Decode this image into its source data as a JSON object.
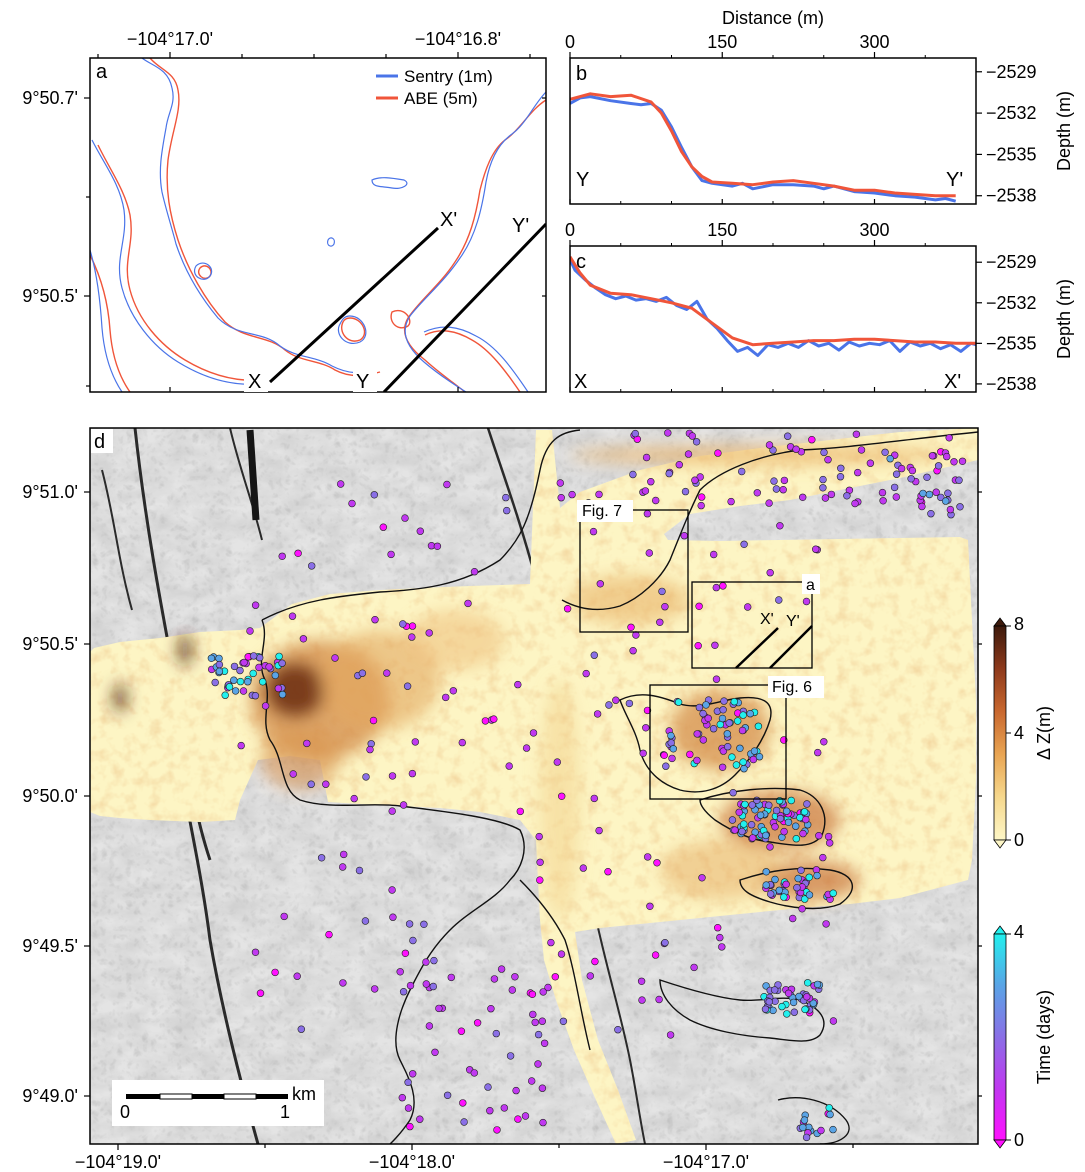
{
  "panel_a": {
    "letter": "a",
    "top_ticks": [
      "−104°17.0'",
      "−104°16.8'"
    ],
    "left_ticks": [
      "9°50.7'",
      "9°50.5'"
    ],
    "legend": [
      {
        "label": "Sentry (1m)",
        "color": "#4a74e8"
      },
      {
        "label": "ABE (5m)",
        "color": "#f0553a"
      }
    ],
    "profile_labels": {
      "x": "X",
      "x_prime": "X'",
      "y": "Y",
      "y_prime": "Y'"
    }
  },
  "chart_data": [
    {
      "type": "line",
      "panel": "b",
      "profile": [
        "Y",
        "Y'"
      ],
      "xlabel": "Distance (m)",
      "ylabel": "Depth (m)",
      "xlim": [
        0,
        400
      ],
      "ylim": [
        -2538.6,
        -2528
      ],
      "x_ticks": [
        "0",
        "150",
        "300"
      ],
      "y_ticks": [
        "−2529",
        "−2532",
        "−2535",
        "−2538"
      ],
      "series": [
        {
          "name": "Sentry (1m)",
          "color": "#4a74e8",
          "x": [
            0,
            10,
            20,
            40,
            60,
            70,
            80,
            90,
            100,
            110,
            120,
            130,
            140,
            160,
            170,
            180,
            200,
            220,
            240,
            250,
            260,
            280,
            300,
            320,
            340,
            360,
            370,
            380
          ],
          "y": [
            -2531.3,
            -2530.9,
            -2530.8,
            -2531.1,
            -2531.3,
            -2531.4,
            -2531.3,
            -2531.8,
            -2533.0,
            -2534.5,
            -2535.9,
            -2536.9,
            -2537.1,
            -2537.3,
            -2537.1,
            -2537.5,
            -2537.2,
            -2537.2,
            -2537.3,
            -2537.5,
            -2537.3,
            -2537.7,
            -2537.8,
            -2538.0,
            -2538.1,
            -2538.3,
            -2538.2,
            -2538.4
          ]
        },
        {
          "name": "ABE (5m)",
          "color": "#f0553a",
          "x": [
            0,
            20,
            40,
            60,
            80,
            90,
            100,
            110,
            120,
            130,
            140,
            160,
            180,
            200,
            220,
            240,
            260,
            280,
            300,
            320,
            340,
            360,
            380
          ],
          "y": [
            -2531.0,
            -2530.6,
            -2530.8,
            -2530.7,
            -2531.2,
            -2532.0,
            -2533.3,
            -2534.8,
            -2535.9,
            -2536.6,
            -2537.0,
            -2537.1,
            -2537.2,
            -2537.0,
            -2536.9,
            -2537.1,
            -2537.3,
            -2537.6,
            -2537.6,
            -2537.8,
            -2537.9,
            -2538.0,
            -2538.0
          ]
        }
      ],
      "annotations": [
        "Y",
        "Y'"
      ]
    },
    {
      "type": "line",
      "panel": "c",
      "profile": [
        "X",
        "X'"
      ],
      "xlabel": "",
      "ylabel": "Depth (m)",
      "xlim": [
        0,
        400
      ],
      "ylim": [
        -2538.6,
        -2527.8
      ],
      "x_ticks": [
        "0",
        "150",
        "300"
      ],
      "y_ticks": [
        "−2529",
        "−2532",
        "−2535",
        "−2538"
      ],
      "series": [
        {
          "name": "Sentry (1m)",
          "color": "#4a74e8",
          "x": [
            0,
            5,
            15,
            25,
            35,
            45,
            55,
            65,
            75,
            85,
            95,
            105,
            115,
            125,
            135,
            145,
            155,
            165,
            175,
            185,
            195,
            205,
            215,
            225,
            235,
            245,
            255,
            265,
            275,
            285,
            295,
            305,
            315,
            325,
            335,
            345,
            355,
            365,
            375,
            385,
            395,
            400
          ],
          "y": [
            -2528.8,
            -2529.6,
            -2530.3,
            -2530.9,
            -2531.4,
            -2531.7,
            -2531.5,
            -2531.8,
            -2531.7,
            -2531.9,
            -2531.6,
            -2532.2,
            -2532.5,
            -2531.9,
            -2533.2,
            -2533.9,
            -2534.8,
            -2535.6,
            -2535.3,
            -2535.9,
            -2535.1,
            -2535.3,
            -2535.0,
            -2535.3,
            -2534.8,
            -2535.2,
            -2535.0,
            -2535.5,
            -2534.9,
            -2535.2,
            -2535.0,
            -2535.1,
            -2534.8,
            -2535.6,
            -2534.9,
            -2535.2,
            -2535.0,
            -2535.4,
            -2535.1,
            -2535.6,
            -2535.0,
            -2535.1
          ]
        },
        {
          "name": "ABE (5m)",
          "color": "#f0553a",
          "x": [
            0,
            10,
            20,
            40,
            60,
            80,
            100,
            120,
            140,
            160,
            180,
            200,
            220,
            240,
            260,
            280,
            300,
            320,
            340,
            360,
            380,
            400
          ],
          "y": [
            -2528.6,
            -2529.8,
            -2530.7,
            -2531.3,
            -2531.4,
            -2531.7,
            -2532.0,
            -2532.4,
            -2533.5,
            -2534.6,
            -2535.1,
            -2535.0,
            -2534.9,
            -2534.8,
            -2534.8,
            -2534.7,
            -2534.7,
            -2534.8,
            -2534.9,
            -2534.9,
            -2535.0,
            -2535.0
          ]
        }
      ],
      "annotations": [
        "X",
        "X'"
      ]
    }
  ],
  "panel_d": {
    "letter": "d",
    "bottom_ticks": [
      "−104°19.0'",
      "−104°18.0'",
      "−104°17.0'"
    ],
    "left_ticks": [
      "9°51.0'",
      "9°50.5'",
      "9°50.0'",
      "9°49.5'",
      "9°49.0'"
    ],
    "boxes": [
      {
        "label": "Fig. 7"
      },
      {
        "label": "a"
      },
      {
        "label": "Fig. 6"
      }
    ],
    "profile_labels": {
      "x_prime": "X'",
      "y_prime": "Y'"
    },
    "scale_bar": {
      "unit": "km",
      "start": "0",
      "end": "1"
    },
    "colorbar_dz": {
      "title": "Δ Z(m)",
      "ticks": [
        "8",
        "4",
        "0"
      ],
      "colors": [
        "#fdf6c6",
        "#f6d88d",
        "#e9a553",
        "#c9682f",
        "#8e3a1c",
        "#3d1a0c"
      ]
    },
    "colorbar_time": {
      "title": "Time (days)",
      "ticks": [
        "4",
        "0"
      ],
      "colors": [
        "#ff10ff",
        "#c038f0",
        "#8a6fe6",
        "#5aa4e6",
        "#22f0ee"
      ]
    }
  }
}
